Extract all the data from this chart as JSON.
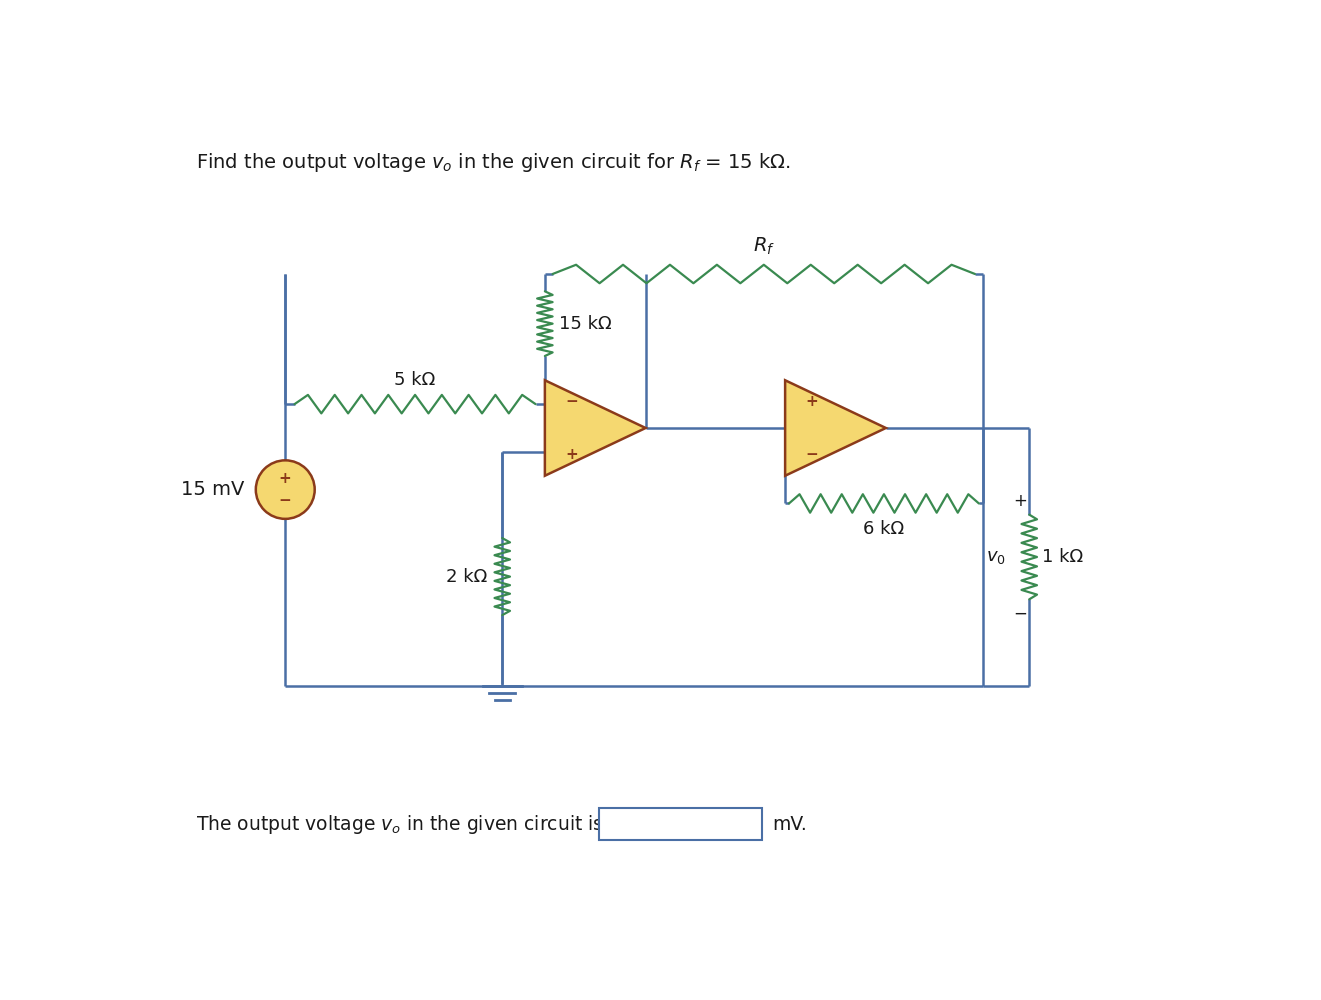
{
  "bg_color": "#ffffff",
  "wire_color": "#4a6fa5",
  "resistor_color": "#3a8a50",
  "opamp_fill": "#f5d870",
  "opamp_edge": "#8b3a1a",
  "source_fill": "#f5d870",
  "source_edge": "#8b3a1a",
  "label_color": "#1a1a1a",
  "box_color": "#4a6fa5",
  "ground_color": "#4a6fa5",
  "title": "Find the output voltage $v_o$ in the given circuit for $R_f$ = 15 kΩ.",
  "bottom_prefix": "The output voltage $v_o$ in the given circuit is",
  "bottom_suffix": "mV.",
  "res5k_label": "5 kΩ",
  "res15k_label": "15 kΩ",
  "resRf_label": "$R_f$",
  "res2k_label": "2 kΩ",
  "res6k_label": "6 kΩ",
  "res1k_label": "1 kΩ",
  "source_label": "15 mV",
  "vo_label": "$v_0$"
}
